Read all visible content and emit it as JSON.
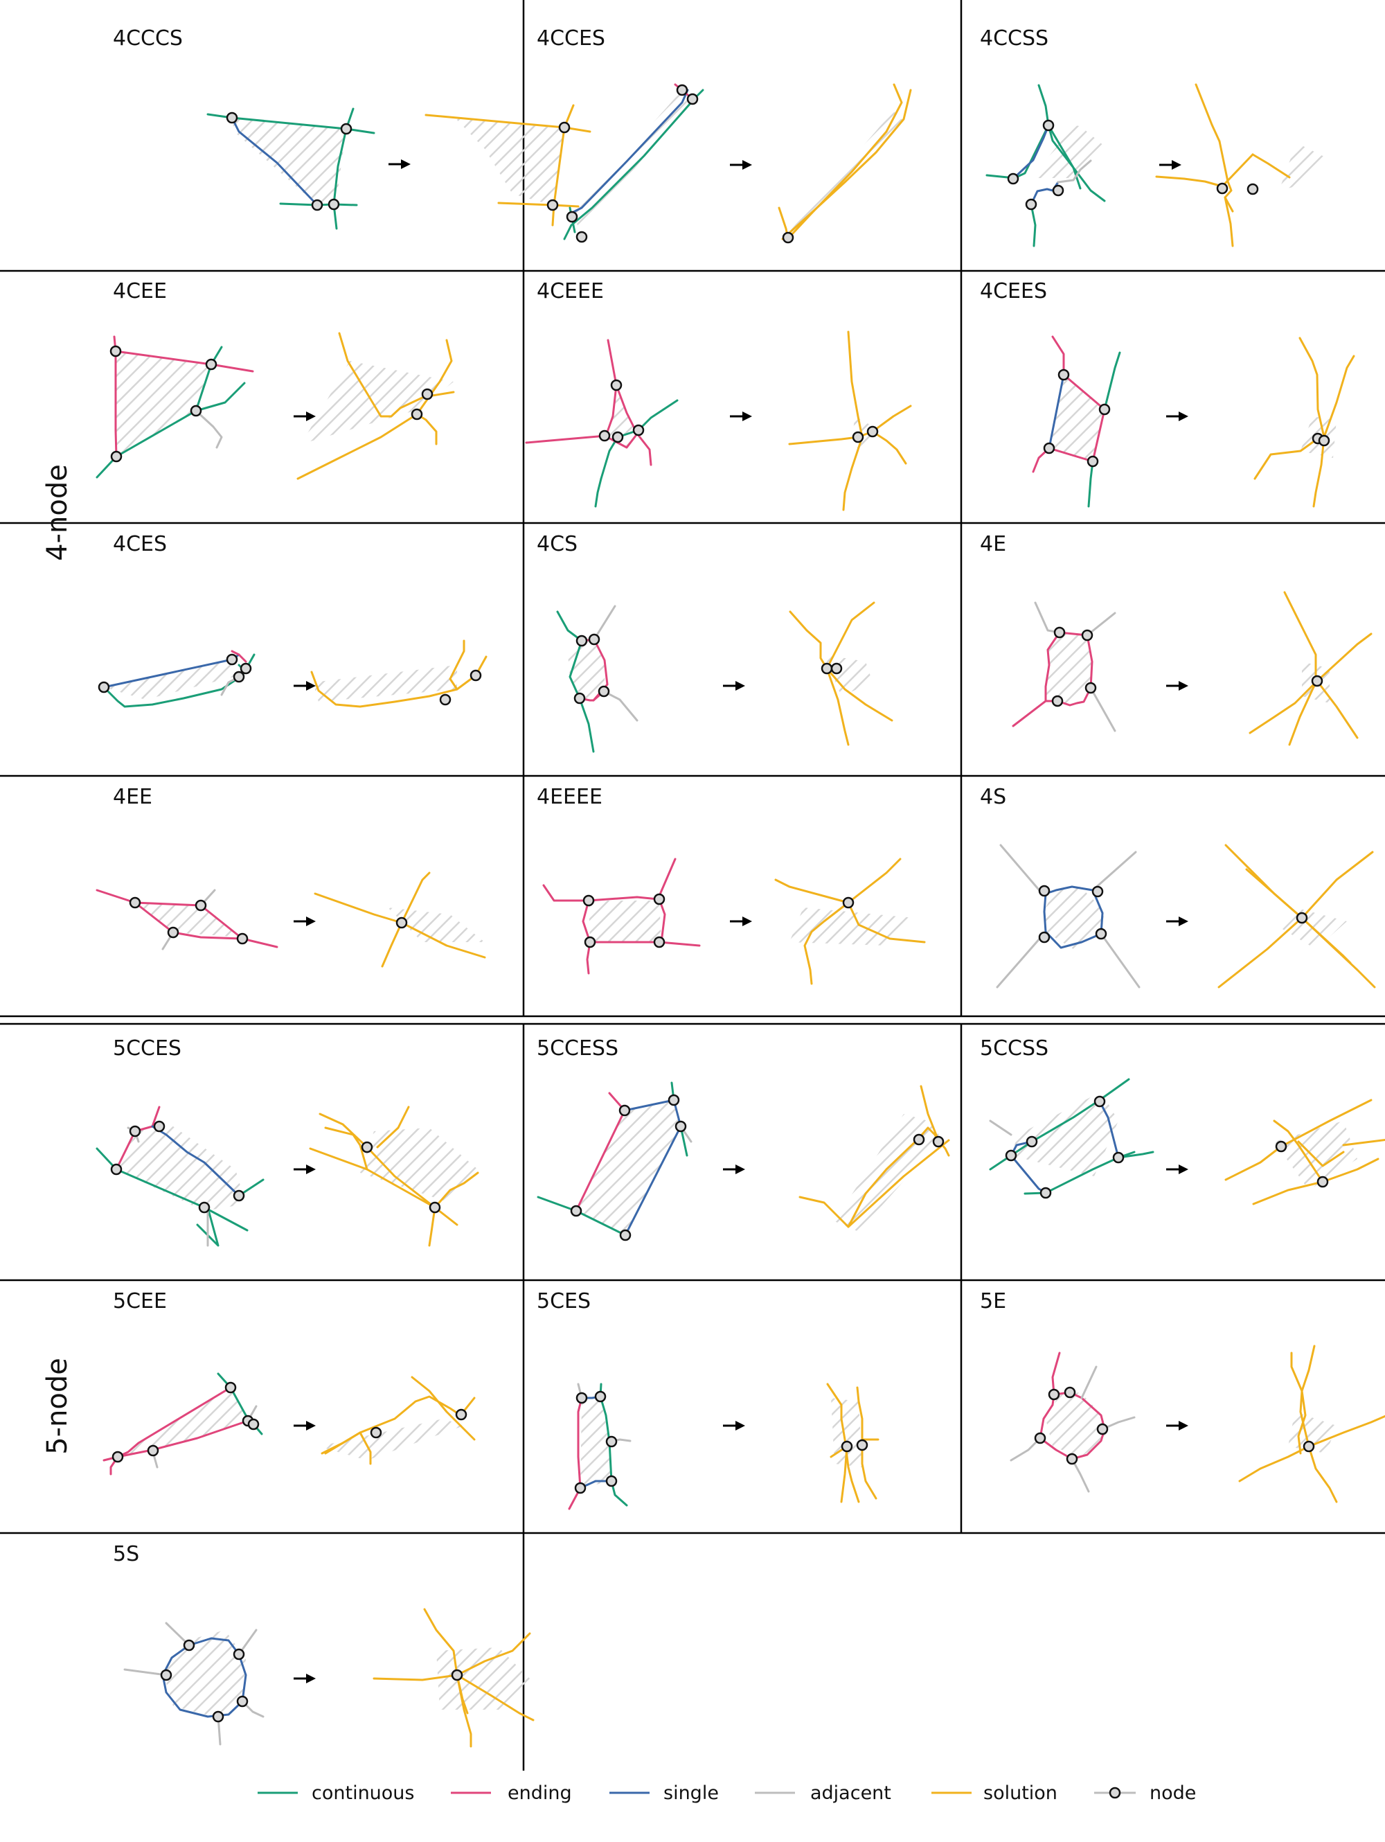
{
  "group_labels": {
    "four_node": "4-node",
    "five_node": "5-node"
  },
  "panels": [
    {
      "id": "4cccs",
      "label": "4CCCS"
    },
    {
      "id": "4cces",
      "label": "4CCES"
    },
    {
      "id": "4ccss",
      "label": "4CCSS"
    },
    {
      "id": "4cee",
      "label": "4CEE"
    },
    {
      "id": "4ceee",
      "label": "4CEEE"
    },
    {
      "id": "4cees",
      "label": "4CEES"
    },
    {
      "id": "4ces",
      "label": "4CES"
    },
    {
      "id": "4cs",
      "label": "4CS"
    },
    {
      "id": "4e",
      "label": "4E"
    },
    {
      "id": "4ee",
      "label": "4EE"
    },
    {
      "id": "4eeee",
      "label": "4EEEE"
    },
    {
      "id": "4s",
      "label": "4S"
    },
    {
      "id": "5cces",
      "label": "5CCES"
    },
    {
      "id": "5ccess",
      "label": "5CCESS"
    },
    {
      "id": "5ccss",
      "label": "5CCSS"
    },
    {
      "id": "5cee",
      "label": "5CEE"
    },
    {
      "id": "5ces",
      "label": "5CES"
    },
    {
      "id": "5e",
      "label": "5E"
    },
    {
      "id": "5s",
      "label": "5S"
    }
  ],
  "legend": [
    {
      "key": "continuous",
      "label": "continuous",
      "color": "#1a9e77"
    },
    {
      "key": "ending",
      "label": "ending",
      "color": "#e0457b"
    },
    {
      "key": "single",
      "label": "single",
      "color": "#3a68aa"
    },
    {
      "key": "adjacent",
      "label": "adjacent",
      "color": "#bdbdbd"
    },
    {
      "key": "solution",
      "label": "solution",
      "color": "#f1b21d"
    },
    {
      "key": "node",
      "label": "node",
      "color": "#bdbdbd"
    }
  ],
  "colors": {
    "continuous": "#1a9e77",
    "ending": "#e0457b",
    "single": "#3a68aa",
    "adjacent": "#bdbdbd",
    "solution": "#f1b21d",
    "hatch": "#d6d6d6",
    "node_fill": "#d9d9d9",
    "node_stroke": "#111111",
    "arrow": "#000000"
  },
  "arrow_icon": "right-arrow-icon"
}
